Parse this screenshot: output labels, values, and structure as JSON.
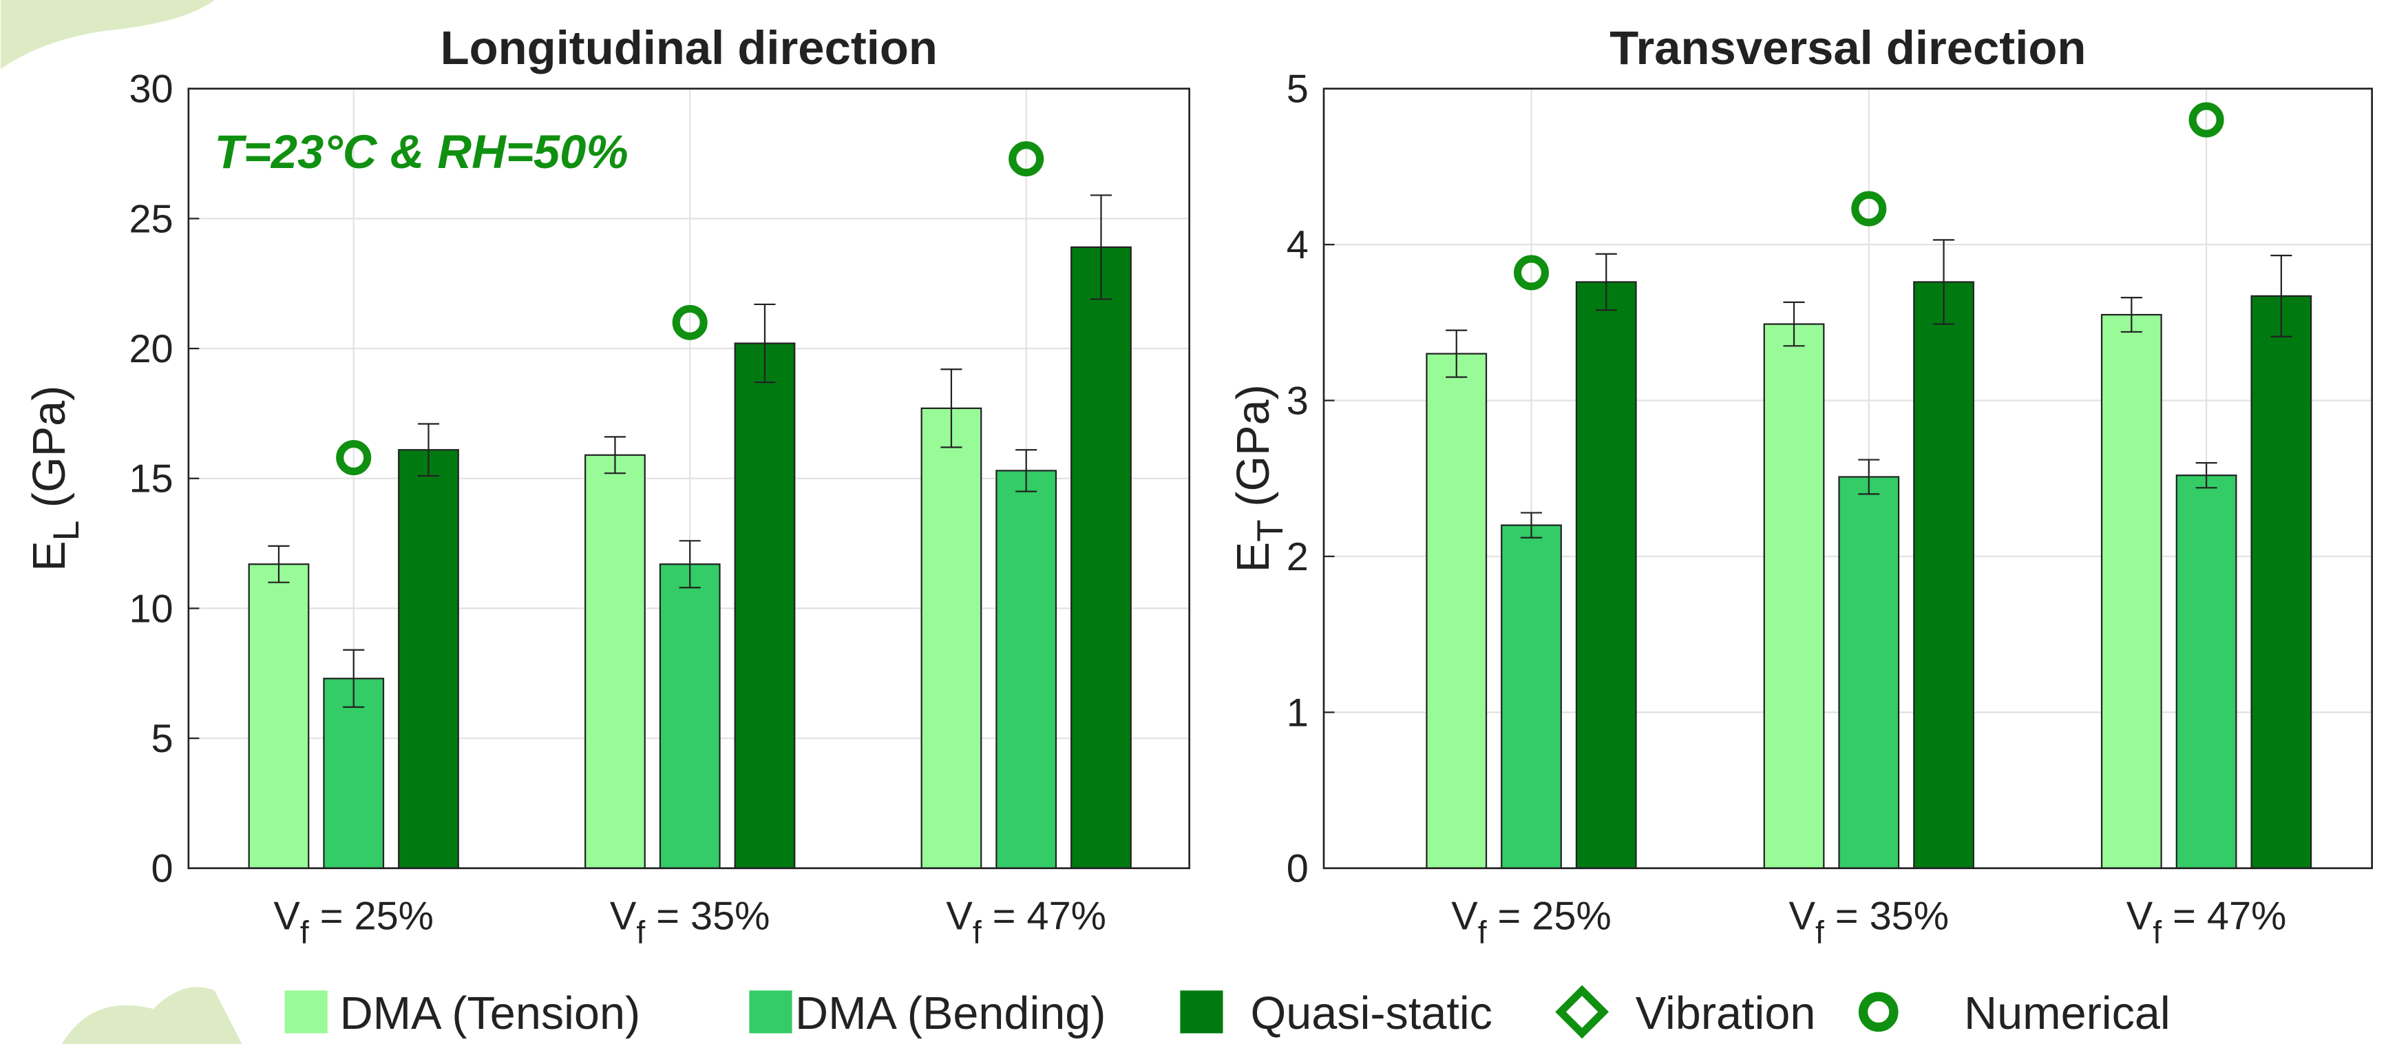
{
  "chart_data": [
    {
      "type": "bar",
      "title": "Longitudinal direction",
      "y_label": "EL (GPa)",
      "annotation": "T=23°C & RH=50%",
      "categories": [
        "Vf = 25%",
        "Vf = 35%",
        "Vf = 47%"
      ],
      "ylim": [
        0,
        30
      ],
      "yticks": [
        0,
        5,
        10,
        15,
        20,
        25,
        30
      ],
      "grid": true,
      "series": [
        {
          "name": "DMA (Tension)",
          "color": "#98fb98",
          "values": [
            11.7,
            15.9,
            17.7
          ],
          "errors": [
            0.7,
            0.7,
            1.5
          ]
        },
        {
          "name": "DMA (Bending)",
          "color": "#33cc66",
          "values": [
            7.3,
            11.7,
            15.3
          ],
          "errors": [
            1.1,
            0.9,
            0.8
          ]
        },
        {
          "name": "Quasi-static",
          "color": "#007a10",
          "values": [
            16.1,
            20.2,
            23.9
          ],
          "errors": [
            1.0,
            1.5,
            2.0
          ]
        },
        {
          "name": "Vibration",
          "color": "#109010",
          "marker": "diamond",
          "values": [
            null,
            null,
            null
          ]
        },
        {
          "name": "Numerical",
          "color": "#109010",
          "marker": "circle",
          "values": [
            15.8,
            21.0,
            27.3
          ]
        }
      ]
    },
    {
      "type": "bar",
      "title": "Transversal direction",
      "y_label": "ET (GPa)",
      "categories": [
        "Vf = 25%",
        "Vf = 35%",
        "Vf = 47%"
      ],
      "ylim": [
        0,
        5
      ],
      "yticks": [
        0,
        1,
        2,
        3,
        4,
        5
      ],
      "grid": true,
      "series": [
        {
          "name": "DMA (Tension)",
          "color": "#98fb98",
          "values": [
            3.3,
            3.49,
            3.55
          ],
          "errors": [
            0.15,
            0.14,
            0.11
          ]
        },
        {
          "name": "DMA (Bending)",
          "color": "#33cc66",
          "values": [
            2.2,
            2.51,
            2.52
          ],
          "errors": [
            0.08,
            0.11,
            0.08
          ]
        },
        {
          "name": "Quasi-static",
          "color": "#007a10",
          "values": [
            3.76,
            3.76,
            3.67
          ],
          "errors": [
            0.18,
            0.27,
            0.26
          ]
        },
        {
          "name": "Vibration",
          "color": "#109010",
          "marker": "diamond",
          "values": [
            null,
            null,
            null
          ]
        },
        {
          "name": "Numerical",
          "color": "#109010",
          "marker": "circle",
          "values": [
            3.82,
            4.23,
            4.8
          ]
        }
      ]
    }
  ]
}
